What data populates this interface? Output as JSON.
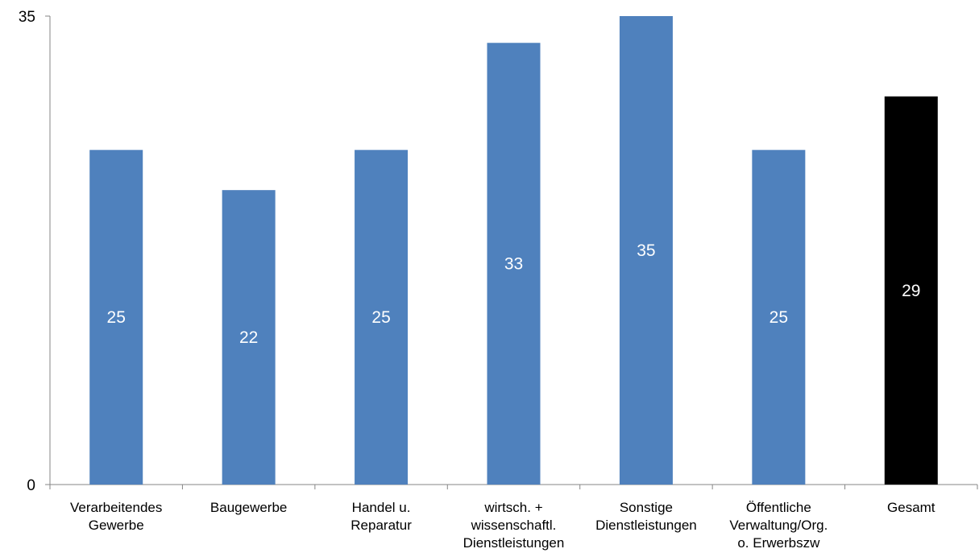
{
  "chart_data": {
    "type": "bar",
    "categories": [
      [
        "Verarbeitendes",
        "Gewerbe"
      ],
      [
        "Baugewerbe"
      ],
      [
        "Handel u.",
        "Reparatur"
      ],
      [
        "wirtsch. +",
        "wissenschaftl.",
        "Dienstleistungen"
      ],
      [
        "Sonstige",
        "Dienstleistungen"
      ],
      [
        "Öffentliche",
        "Verwaltung/Org.",
        "o. Erwerbszw"
      ],
      [
        "Gesamt"
      ]
    ],
    "values": [
      25,
      22,
      25,
      33,
      35,
      25,
      29
    ],
    "value_labels": [
      "25",
      "22",
      "25",
      "33",
      "35",
      "25",
      "29"
    ],
    "bar_colors": [
      "#4f81bd",
      "#4f81bd",
      "#4f81bd",
      "#4f81bd",
      "#4f81bd",
      "#4f81bd",
      "#000000"
    ],
    "ylim": [
      0,
      35
    ],
    "yticks": [
      "0",
      "35"
    ],
    "grid": false,
    "legend": "none"
  }
}
